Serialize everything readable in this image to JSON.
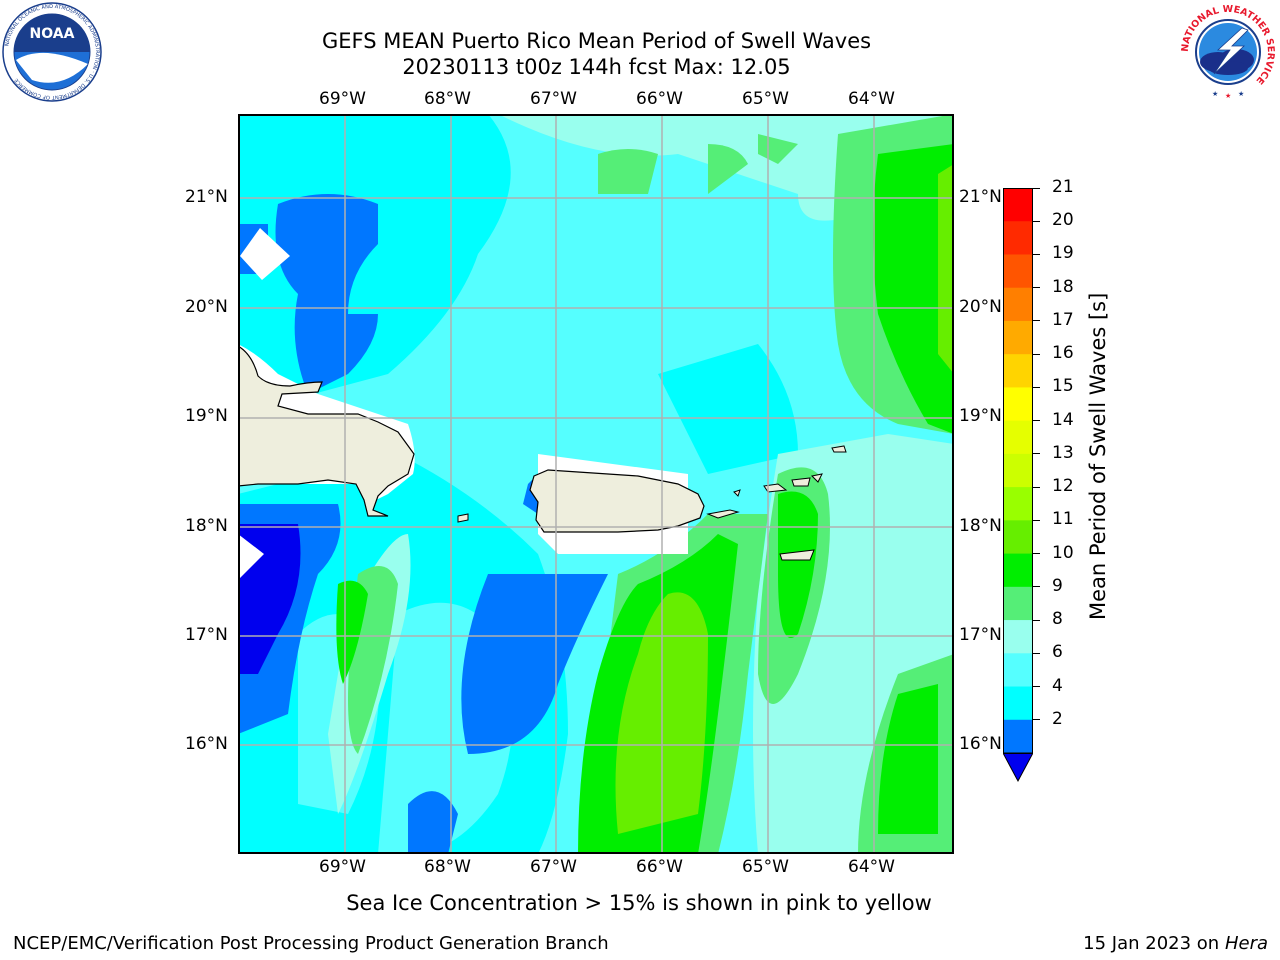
{
  "header": {
    "title_line1": "GEFS MEAN Puerto Rico Mean Period of Swell Waves",
    "title_line2": "20230113 t00z 144h fcst   Max: 12.05"
  },
  "logos": {
    "left": "NOAA",
    "left_ring": "NATIONAL OCEANIC AND ATMOSPHERIC ADMINISTRATION · U.S. DEPARTMENT OF COMMERCE",
    "right_ring": "NATIONAL WEATHER SERVICE"
  },
  "axes": {
    "lon_labels": [
      "69°W",
      "68°W",
      "67°W",
      "66°W",
      "65°W",
      "64°W"
    ],
    "lat_labels": [
      "21°N",
      "20°N",
      "19°N",
      "18°N",
      "17°N",
      "16°N"
    ]
  },
  "colorbar": {
    "label": "Mean Period of Swell Waves [s]",
    "ticks": [
      "21",
      "20",
      "19",
      "18",
      "17",
      "16",
      "15",
      "14",
      "13",
      "12",
      "11",
      "10",
      "9",
      "8",
      "6",
      "4",
      "2"
    ],
    "colors": [
      "#ff0000",
      "#ff2a00",
      "#ff5500",
      "#ff7f00",
      "#ffaa00",
      "#ffd400",
      "#ffff00",
      "#e5ff00",
      "#ccff00",
      "#99ff00",
      "#66ee00",
      "#00ee00",
      "#55ee77",
      "#99ffee",
      "#55ffff",
      "#00ffff",
      "#0077ff"
    ],
    "extend_color": "#0000ee"
  },
  "footer": {
    "note": "Sea Ice Concentration > 15% is shown in pink to yellow",
    "left": "NCEP/EMC/Verification Post Processing Product Generation Branch",
    "right_date": "15 Jan 2023 on",
    "right_host": "Hera"
  }
}
